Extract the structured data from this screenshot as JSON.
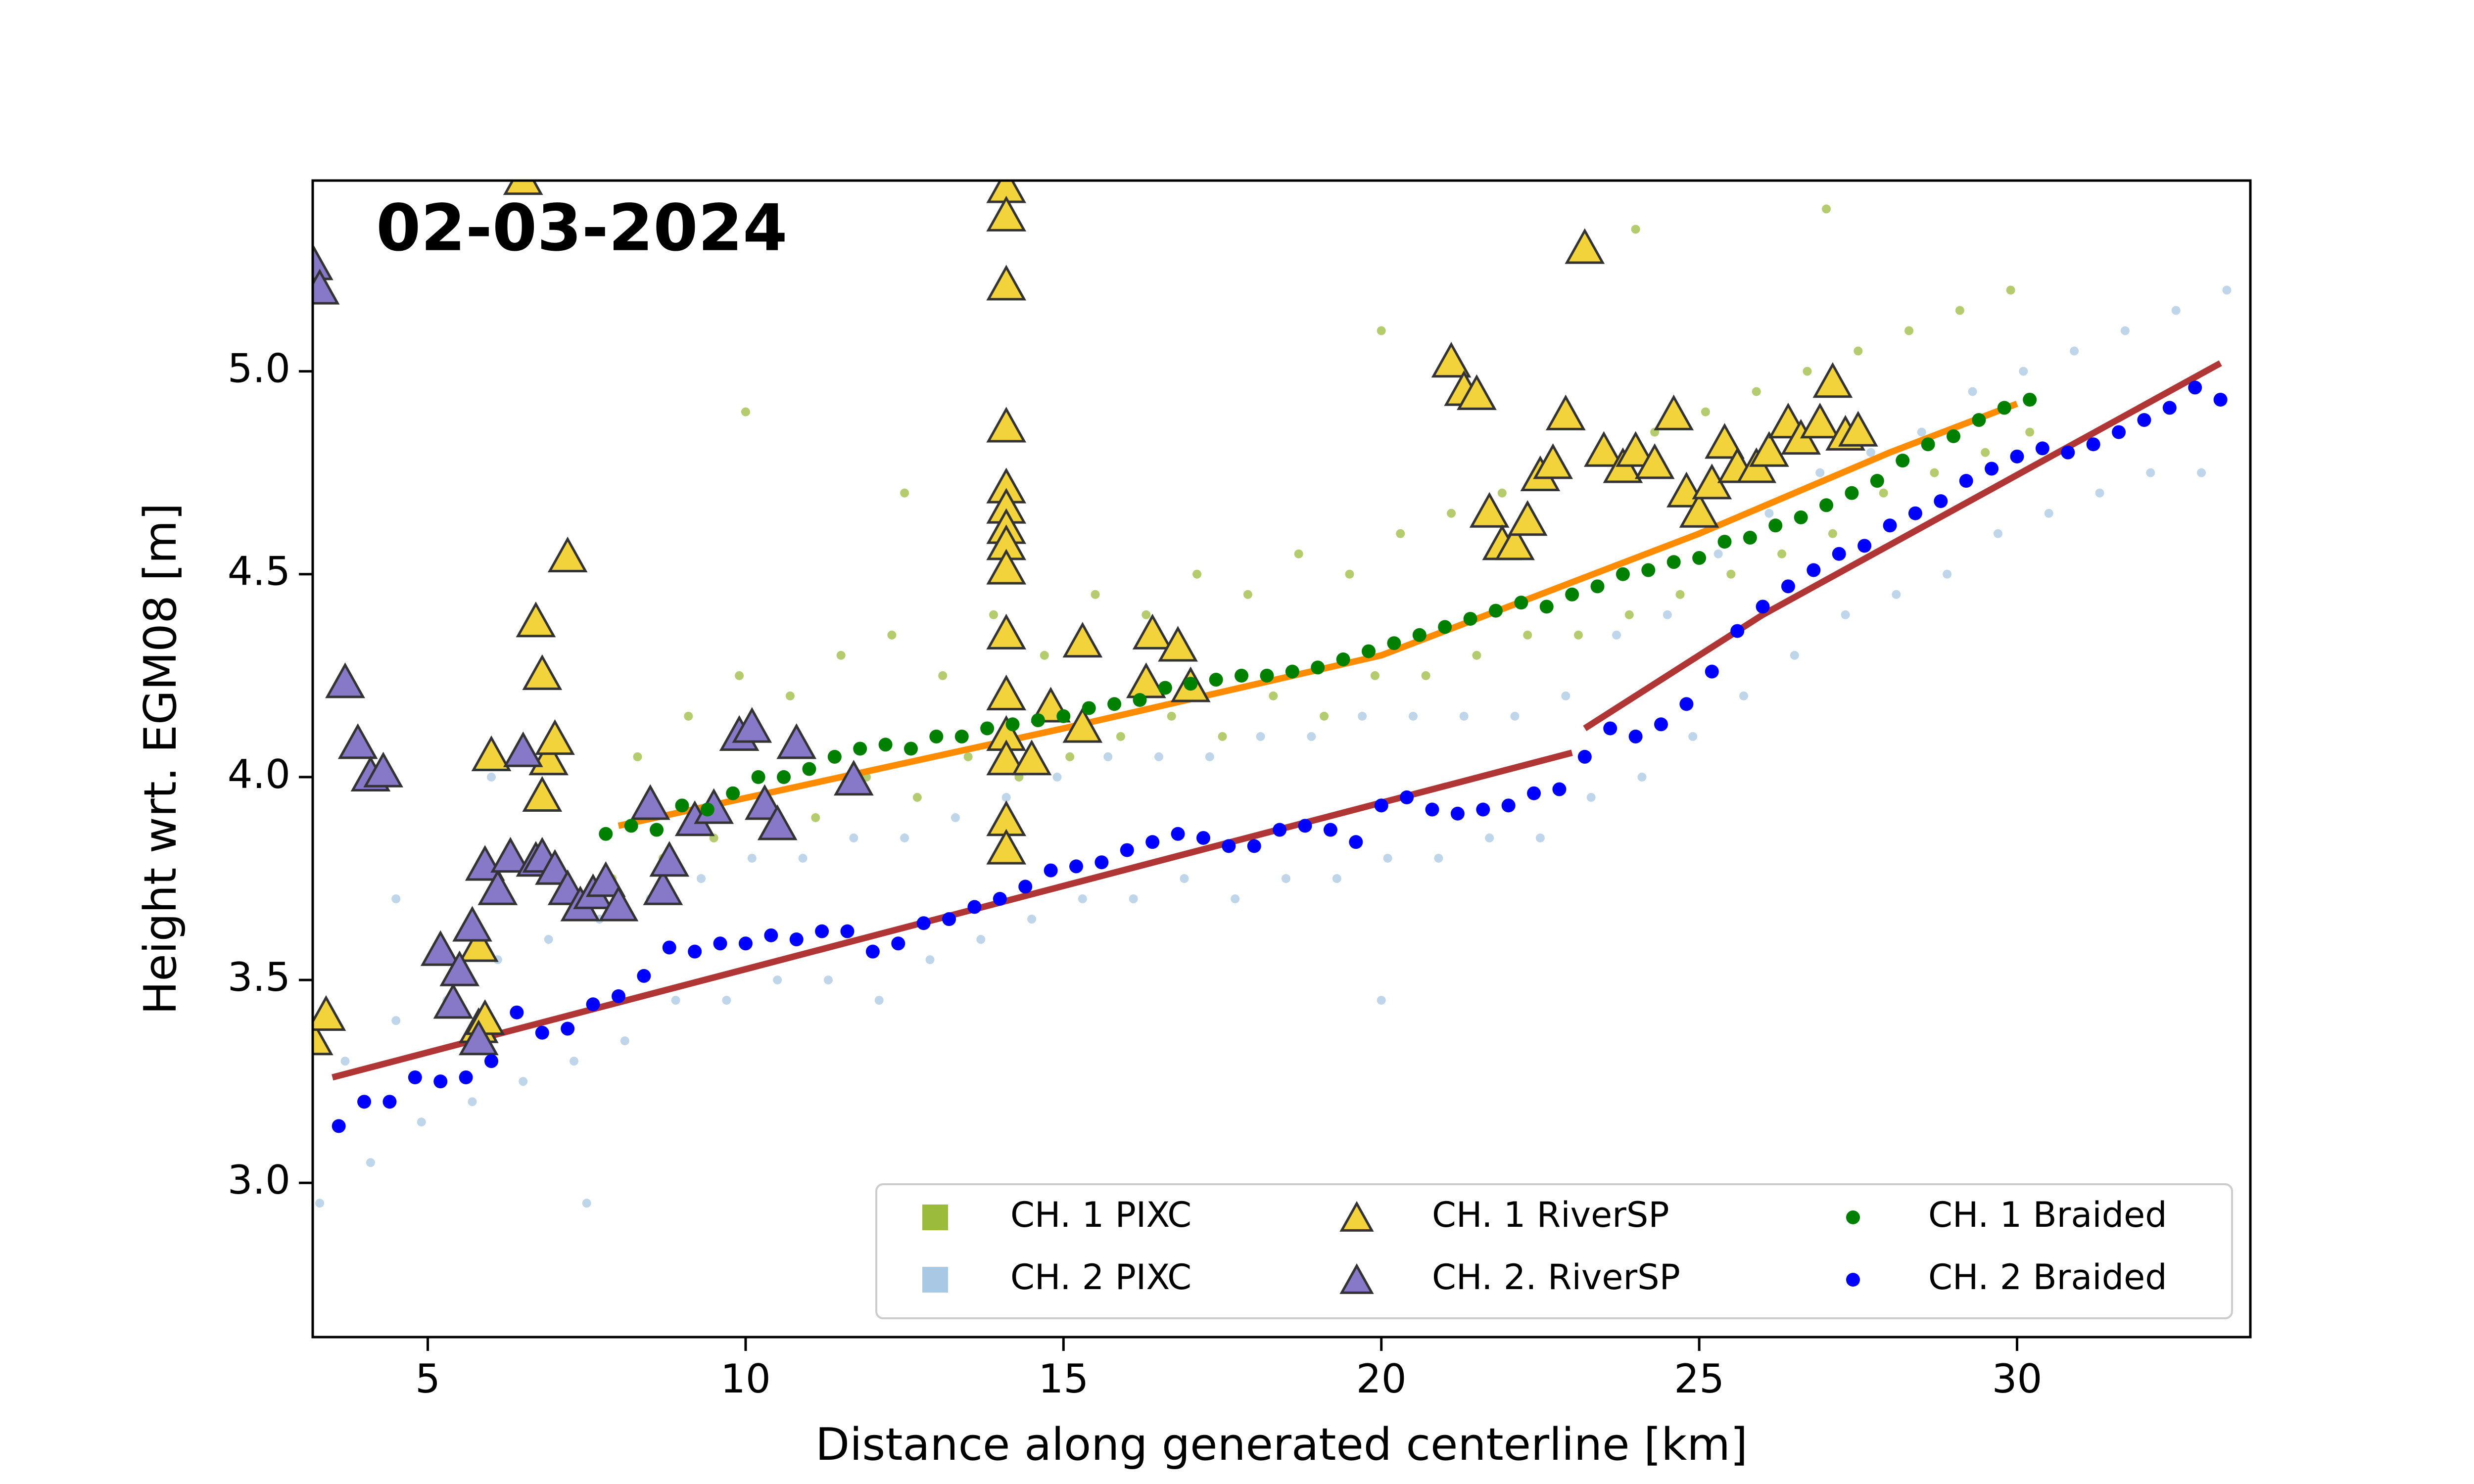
{
  "chart_data": {
    "type": "scatter",
    "annotation": "02-03-2024",
    "xlabel": "Distance along generated centerline [km]",
    "ylabel": "Height wrt. EGM08 [m]",
    "xlim": [
      3.19,
      33.67
    ],
    "ylim": [
      2.62,
      5.47
    ],
    "xticks": [
      5,
      10,
      15,
      20,
      25,
      30
    ],
    "yticks": [
      {
        "value": 3.0,
        "label": "3.0"
      },
      3.5,
      {
        "value": 4.0,
        "label": "4.0"
      },
      4.5,
      {
        "value": 5.0,
        "label": "5.0"
      }
    ],
    "grid": false,
    "legend": "lower right",
    "series": [
      {
        "name": "CH. 1 PIXC",
        "color": "#9bbb3c",
        "marker": "point",
        "x": [
          7.9,
          8.3,
          8.7,
          9.1,
          9.5,
          9.9,
          10.3,
          10.7,
          11.1,
          11.5,
          11.9,
          12.3,
          12.7,
          13.1,
          13.5,
          13.9,
          14.3,
          14.7,
          15.1,
          15.5,
          15.9,
          16.3,
          16.7,
          17.1,
          17.5,
          17.9,
          18.3,
          18.7,
          19.1,
          19.5,
          19.9,
          20.3,
          20.7,
          21.1,
          21.5,
          21.9,
          22.3,
          22.7,
          23.1,
          23.5,
          23.9,
          24.3,
          24.7,
          25.1,
          25.5,
          25.9,
          26.3,
          26.7,
          27.1,
          27.5,
          27.9,
          28.3,
          28.7,
          29.1,
          29.5,
          29.9,
          30.2,
          10.0,
          12.5,
          20.0,
          24.0,
          27.0
        ],
        "y": [
          3.75,
          4.05,
          3.8,
          4.15,
          3.85,
          4.25,
          3.95,
          4.2,
          3.9,
          4.3,
          4.0,
          4.35,
          3.95,
          4.25,
          4.05,
          4.4,
          4.0,
          4.3,
          4.05,
          4.45,
          4.1,
          4.4,
          4.15,
          4.5,
          4.1,
          4.45,
          4.2,
          4.55,
          4.15,
          4.5,
          4.25,
          4.6,
          4.25,
          4.65,
          4.3,
          4.7,
          4.35,
          4.75,
          4.35,
          4.8,
          4.4,
          4.85,
          4.45,
          4.9,
          4.5,
          4.95,
          4.55,
          5.0,
          4.6,
          5.05,
          4.7,
          5.1,
          4.75,
          5.15,
          4.8,
          5.2,
          4.85,
          4.9,
          4.7,
          5.1,
          5.35,
          5.4
        ]
      },
      {
        "name": "CH. 2 PIXC",
        "color": "#a9c8e3",
        "marker": "point",
        "x": [
          3.3,
          3.7,
          4.1,
          4.5,
          4.9,
          5.3,
          5.7,
          6.1,
          6.5,
          6.9,
          7.3,
          7.7,
          8.1,
          8.5,
          8.9,
          9.3,
          9.7,
          10.1,
          10.5,
          10.9,
          11.3,
          11.7,
          12.1,
          12.5,
          12.9,
          13.3,
          13.7,
          14.1,
          14.5,
          14.9,
          15.3,
          15.7,
          16.1,
          16.5,
          16.9,
          17.3,
          17.7,
          18.1,
          18.5,
          18.9,
          19.3,
          19.7,
          20.1,
          20.5,
          20.9,
          21.3,
          21.7,
          22.1,
          22.5,
          22.9,
          23.3,
          23.7,
          24.1,
          24.5,
          24.9,
          25.3,
          25.7,
          26.1,
          26.5,
          26.9,
          27.3,
          27.7,
          28.1,
          28.5,
          28.9,
          29.3,
          29.7,
          30.1,
          30.5,
          30.9,
          31.3,
          31.7,
          32.1,
          32.5,
          32.9,
          33.3,
          6.0,
          4.5,
          7.5,
          20.0
        ],
        "y": [
          2.95,
          3.3,
          3.05,
          3.4,
          3.15,
          3.45,
          3.2,
          3.55,
          3.25,
          3.6,
          3.3,
          3.65,
          3.35,
          3.7,
          3.45,
          3.75,
          3.45,
          3.8,
          3.5,
          3.8,
          3.5,
          3.85,
          3.45,
          3.85,
          3.55,
          3.9,
          3.6,
          3.95,
          3.65,
          4.0,
          3.7,
          4.05,
          3.7,
          4.05,
          3.75,
          4.05,
          3.7,
          4.1,
          3.75,
          4.1,
          3.75,
          4.15,
          3.8,
          4.15,
          3.8,
          4.15,
          3.85,
          4.15,
          3.85,
          4.2,
          3.95,
          4.35,
          4.0,
          4.4,
          4.1,
          4.55,
          4.2,
          4.65,
          4.3,
          4.75,
          4.4,
          4.8,
          4.45,
          4.85,
          4.5,
          4.95,
          4.6,
          5.0,
          4.65,
          5.05,
          4.7,
          5.1,
          4.75,
          5.15,
          4.75,
          5.2,
          4.0,
          3.7,
          2.95,
          3.45
        ]
      },
      {
        "name": "CH. 1 RiverSP",
        "color": "#f2d33c",
        "marker": "triangle",
        "x": [
          3.2,
          3.4,
          5.8,
          5.9,
          5.8,
          6.0,
          6.7,
          6.8,
          6.9,
          6.8,
          7.0,
          7.2,
          6.5,
          14.1,
          14.1,
          14.1,
          14.1,
          14.1,
          14.1,
          14.1,
          14.1,
          14.1,
          14.1,
          14.1,
          14.1,
          14.1,
          14.1,
          14.1,
          14.5,
          14.8,
          15.3,
          15.3,
          16.3,
          16.4,
          16.8,
          17.0,
          21.1,
          21.3,
          21.5,
          21.7,
          21.9,
          22.1,
          22.3,
          22.5,
          22.7,
          22.9,
          23.2,
          23.5,
          23.8,
          24.0,
          24.3,
          24.6,
          24.8,
          25.0,
          25.2,
          25.4,
          25.6,
          25.9,
          26.1,
          26.4,
          26.6,
          26.9,
          27.1,
          27.3,
          27.5
        ],
        "y": [
          3.35,
          3.41,
          3.38,
          3.4,
          3.58,
          4.05,
          4.38,
          4.25,
          4.04,
          3.95,
          4.09,
          4.54,
          5.47,
          5.45,
          5.38,
          5.21,
          4.86,
          4.71,
          4.66,
          4.61,
          4.57,
          4.51,
          4.35,
          4.2,
          4.1,
          4.04,
          3.89,
          3.82,
          4.04,
          4.17,
          4.33,
          4.12,
          4.23,
          4.35,
          4.32,
          4.22,
          5.02,
          4.95,
          4.94,
          4.65,
          4.57,
          4.57,
          4.63,
          4.74,
          4.77,
          4.89,
          5.3,
          4.8,
          4.76,
          4.8,
          4.77,
          4.89,
          4.7,
          4.65,
          4.72,
          4.82,
          4.76,
          4.76,
          4.8,
          4.87,
          4.83,
          4.87,
          4.97,
          4.84,
          4.85
        ]
      },
      {
        "name": "CH. 2. RiverSP",
        "color": "#8878c8",
        "marker": "triangle",
        "x": [
          3.2,
          3.3,
          3.7,
          3.9,
          4.1,
          4.3,
          5.2,
          5.4,
          5.5,
          5.7,
          5.8,
          5.9,
          6.1,
          6.3,
          6.5,
          6.7,
          6.8,
          7.0,
          7.2,
          7.4,
          7.6,
          7.8,
          8.0,
          8.5,
          8.7,
          8.8,
          9.2,
          9.5,
          9.9,
          10.1,
          10.3,
          10.5,
          10.8,
          11.7
        ],
        "y": [
          5.26,
          5.2,
          4.23,
          4.08,
          4.0,
          4.01,
          3.57,
          3.44,
          3.52,
          3.63,
          3.35,
          3.78,
          3.72,
          3.8,
          4.06,
          3.79,
          3.8,
          3.77,
          3.72,
          3.68,
          3.71,
          3.74,
          3.68,
          3.93,
          3.72,
          3.79,
          3.89,
          3.92,
          4.1,
          4.12,
          3.93,
          3.88,
          4.08,
          3.99
        ]
      },
      {
        "name": "CH. 1 Braided",
        "color": "#008000",
        "marker": "circle",
        "x": [
          7.8,
          8.2,
          8.6,
          9.0,
          9.4,
          9.8,
          10.2,
          10.6,
          11.0,
          11.4,
          11.8,
          12.2,
          12.6,
          13.0,
          13.4,
          13.8,
          14.2,
          14.6,
          15.0,
          15.4,
          15.8,
          16.2,
          16.6,
          17.0,
          17.4,
          17.8,
          18.2,
          18.6,
          19.0,
          19.4,
          19.8,
          20.2,
          20.6,
          21.0,
          21.4,
          21.8,
          22.2,
          22.6,
          23.0,
          23.4,
          23.8,
          24.2,
          24.6,
          25.0,
          25.4,
          25.8,
          26.2,
          26.6,
          27.0,
          27.4,
          27.8,
          28.2,
          28.6,
          29.0,
          29.4,
          29.8,
          30.2
        ],
        "y": [
          3.86,
          3.88,
          3.87,
          3.93,
          3.92,
          3.96,
          4.0,
          4.0,
          4.02,
          4.05,
          4.07,
          4.08,
          4.07,
          4.1,
          4.1,
          4.12,
          4.13,
          4.14,
          4.15,
          4.17,
          4.18,
          4.19,
          4.22,
          4.23,
          4.24,
          4.25,
          4.25,
          4.26,
          4.27,
          4.29,
          4.31,
          4.33,
          4.35,
          4.37,
          4.39,
          4.41,
          4.43,
          4.42,
          4.45,
          4.47,
          4.5,
          4.51,
          4.53,
          4.54,
          4.58,
          4.59,
          4.62,
          4.64,
          4.67,
          4.7,
          4.73,
          4.78,
          4.82,
          4.84,
          4.88,
          4.91,
          4.93
        ]
      },
      {
        "name": "CH. 2 Braided",
        "color": "#0000ff",
        "marker": "circle",
        "x": [
          3.6,
          4.0,
          4.4,
          4.8,
          5.2,
          5.6,
          6.0,
          6.4,
          6.8,
          7.2,
          7.6,
          8.0,
          8.4,
          8.8,
          9.2,
          9.6,
          10.0,
          10.4,
          10.8,
          11.2,
          11.6,
          12.0,
          12.4,
          12.8,
          13.2,
          13.6,
          14.0,
          14.4,
          14.8,
          15.2,
          15.6,
          16.0,
          16.4,
          16.8,
          17.2,
          17.6,
          18.0,
          18.4,
          18.8,
          19.2,
          19.6,
          20.0,
          20.4,
          20.8,
          21.2,
          21.6,
          22.0,
          22.4,
          22.8,
          23.2,
          23.6,
          24.0,
          24.4,
          24.8,
          25.2,
          25.6,
          26.0,
          26.4,
          26.8,
          27.2,
          27.6,
          28.0,
          28.4,
          28.8,
          29.2,
          29.6,
          30.0,
          30.4,
          30.8,
          31.2,
          31.6,
          32.0,
          32.4,
          32.8,
          33.2
        ],
        "y": [
          3.14,
          3.2,
          3.2,
          3.26,
          3.25,
          3.26,
          3.3,
          3.42,
          3.37,
          3.38,
          3.44,
          3.46,
          3.51,
          3.58,
          3.57,
          3.59,
          3.59,
          3.61,
          3.6,
          3.62,
          3.62,
          3.57,
          3.59,
          3.64,
          3.65,
          3.68,
          3.7,
          3.73,
          3.77,
          3.78,
          3.79,
          3.82,
          3.84,
          3.86,
          3.85,
          3.83,
          3.83,
          3.87,
          3.88,
          3.87,
          3.84,
          3.93,
          3.95,
          3.92,
          3.91,
          3.92,
          3.93,
          3.96,
          3.97,
          4.05,
          4.12,
          4.1,
          4.13,
          4.18,
          4.26,
          4.36,
          4.42,
          4.47,
          4.51,
          4.55,
          4.57,
          4.62,
          4.65,
          4.68,
          4.73,
          4.76,
          4.79,
          4.81,
          4.8,
          4.82,
          4.85,
          4.88,
          4.91,
          4.96,
          4.93
        ]
      }
    ],
    "lines": [
      {
        "color": "#ff8c00",
        "x": [
          8,
          15,
          20,
          25,
          28,
          30
        ],
        "y": [
          3.88,
          4.12,
          4.3,
          4.6,
          4.8,
          4.92
        ]
      },
      {
        "color": "#b03535",
        "x": [
          3.5,
          23.0
        ],
        "y": [
          3.26,
          4.06
        ]
      },
      {
        "color": "#b03535",
        "x": [
          23.2,
          26.0,
          33.2
        ],
        "y": [
          4.12,
          4.4,
          5.02
        ]
      }
    ]
  }
}
